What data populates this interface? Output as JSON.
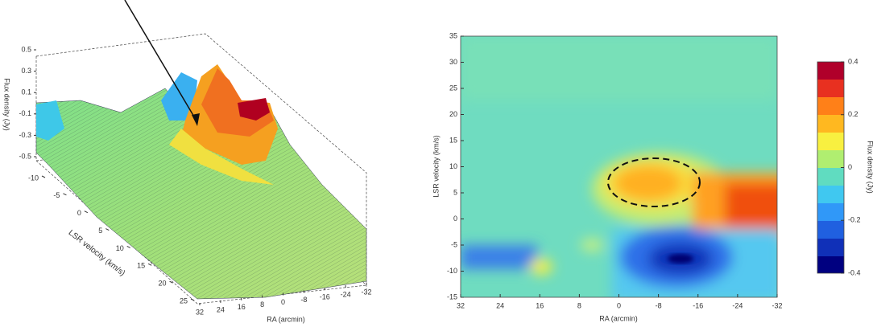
{
  "chart_data": [
    {
      "type": "surface",
      "zlabel": "Flux density (Jy)",
      "ylabel": "LSR velocity (km/s)",
      "xlabel": "RA (arcmin)",
      "zlim": [
        -0.5,
        0.5
      ],
      "zticks": [
        0.5,
        0.3,
        0.1,
        -0.1,
        -0.3,
        -0.5
      ],
      "ylim": [
        -10,
        25
      ],
      "yticks": [
        -10,
        -5,
        0,
        5,
        10,
        15,
        20,
        25
      ],
      "xlim": [
        32,
        -32
      ],
      "xticks": [
        32,
        24,
        16,
        8,
        0,
        -8,
        -16,
        -24,
        -32
      ]
    },
    {
      "type": "heatmap",
      "xlabel": "RA (arcmin)",
      "ylabel": "LSR velocity (km/s)",
      "xlim": [
        32,
        -32
      ],
      "xticks": [
        32,
        24,
        16,
        8,
        0,
        -8,
        -16,
        -24,
        -32
      ],
      "ylim": [
        -15,
        35
      ],
      "yticks": [
        -15,
        -10,
        -5,
        0,
        5,
        10,
        15,
        20,
        25,
        30,
        35
      ],
      "colorbar": {
        "label": "Flux density (Jy)",
        "lim": [
          -0.4,
          0.4
        ],
        "ticks": [
          0.4,
          0.2,
          0,
          -0.2,
          -0.4
        ]
      }
    }
  ]
}
